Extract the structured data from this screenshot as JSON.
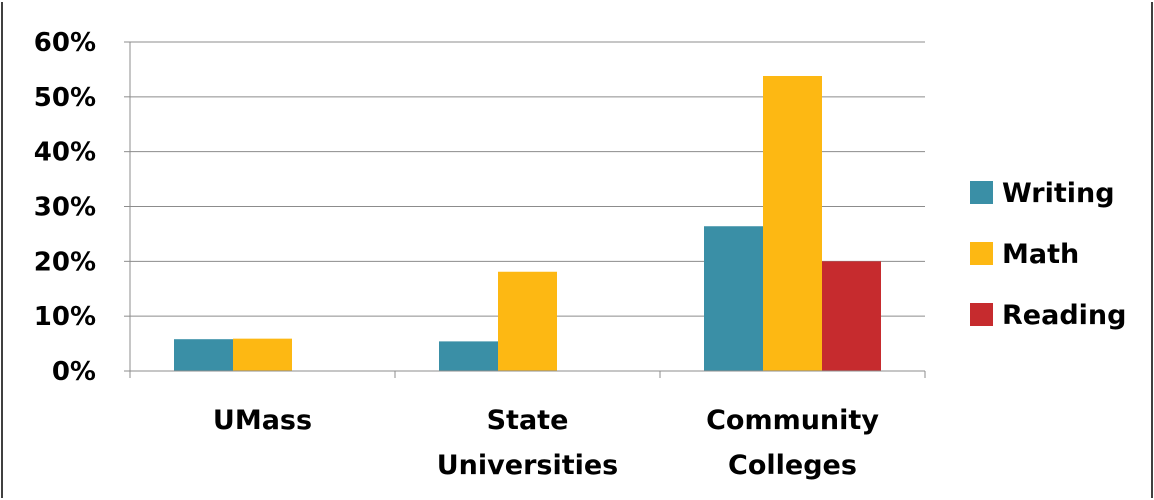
{
  "chart_data": {
    "type": "bar",
    "categories": [
      "UMass",
      "State Universities",
      "Community Colleges"
    ],
    "category_lines": [
      [
        "UMass"
      ],
      [
        "State",
        "Universities"
      ],
      [
        "Community",
        "Colleges"
      ]
    ],
    "series": [
      {
        "name": "Writing",
        "color": "#3A8FA6",
        "values": [
          5.8,
          5.4,
          26.4
        ]
      },
      {
        "name": "Math",
        "color": "#FDB813",
        "values": [
          5.9,
          18.1,
          53.8
        ]
      },
      {
        "name": "Reading",
        "color": "#C62B2E",
        "values": [
          0,
          0,
          20.0
        ]
      }
    ],
    "ylim": [
      0,
      60
    ],
    "yticks": [
      "0%",
      "10%",
      "20%",
      "30%",
      "40%",
      "50%",
      "60%"
    ],
    "ytick_values": [
      0,
      10,
      20,
      30,
      40,
      50,
      60
    ],
    "grid": true,
    "legend_position": "right",
    "title": "",
    "xlabel": "",
    "ylabel": ""
  }
}
